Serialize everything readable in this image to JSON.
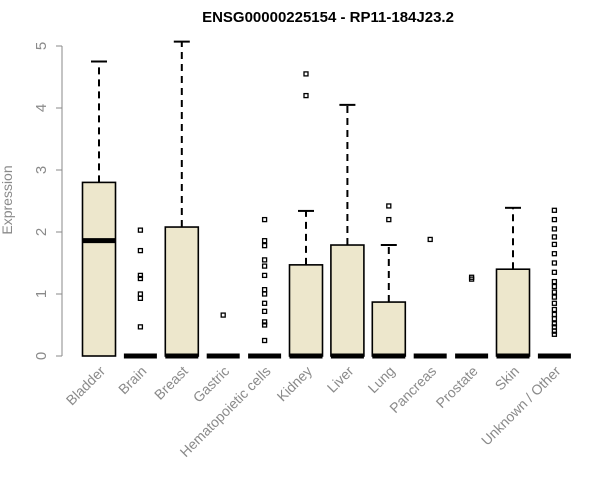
{
  "chart_data": {
    "type": "box",
    "title": "ENSG00000225154 - RP11-184J23.2",
    "ylabel": "Expression",
    "xlabel": "",
    "ylim": [
      0,
      5
    ],
    "yticks": [
      0,
      1,
      2,
      3,
      4,
      5
    ],
    "box_fill": "#ede7cc",
    "line_color": "#000000",
    "grid": false,
    "categories": [
      "Bladder",
      "Brain",
      "Breast",
      "Gastric",
      "Hematopoietic cells",
      "Kidney",
      "Liver",
      "Lung",
      "Pancreas",
      "Prostate",
      "Skin",
      "Unknown / Other"
    ],
    "boxes": [
      {
        "min": 0,
        "q1": 0,
        "median": 1.86,
        "q3": 2.8,
        "max": 4.75,
        "outliers": []
      },
      {
        "min": 0,
        "q1": 0,
        "median": 0,
        "q3": 0,
        "max": 0,
        "outliers": [
          0.47,
          0.93,
          1.0,
          1.25,
          1.3,
          1.7,
          2.03
        ]
      },
      {
        "min": 0,
        "q1": 0,
        "median": 0,
        "q3": 2.08,
        "max": 5.07,
        "outliers": []
      },
      {
        "min": 0,
        "q1": 0,
        "median": 0,
        "q3": 0,
        "max": 0,
        "outliers": [
          0.66
        ]
      },
      {
        "min": 0,
        "q1": 0,
        "median": 0,
        "q3": 0,
        "max": 0,
        "outliers": [
          0.25,
          0.5,
          0.55,
          0.72,
          0.85,
          1.0,
          1.07,
          1.3,
          1.45,
          1.55,
          1.78,
          1.86,
          2.2
        ]
      },
      {
        "min": 0,
        "q1": 0,
        "median": 0,
        "q3": 1.47,
        "max": 2.34,
        "outliers": [
          4.2,
          4.55
        ]
      },
      {
        "min": 0,
        "q1": 0,
        "median": 0,
        "q3": 1.79,
        "max": 4.05,
        "outliers": []
      },
      {
        "min": 0,
        "q1": 0,
        "median": 0,
        "q3": 0.87,
        "max": 1.79,
        "outliers": [
          2.2,
          2.42
        ]
      },
      {
        "min": 0,
        "q1": 0,
        "median": 0,
        "q3": 0,
        "max": 0,
        "outliers": [
          1.88
        ]
      },
      {
        "min": 0,
        "q1": 0,
        "median": 0,
        "q3": 0,
        "max": 0,
        "outliers": [
          1.24,
          1.27
        ]
      },
      {
        "min": 0,
        "q1": 0,
        "median": 0,
        "q3": 1.4,
        "max": 2.39,
        "outliers": []
      },
      {
        "min": 0,
        "q1": 0,
        "median": 0,
        "q3": 0,
        "max": 0,
        "outliers": [
          0.35,
          0.4,
          0.47,
          0.52,
          0.6,
          0.67,
          0.75,
          0.85,
          0.95,
          1.03,
          1.12,
          1.2,
          1.35,
          1.5,
          1.65,
          1.8,
          1.92,
          2.05,
          2.2,
          2.35
        ]
      }
    ]
  }
}
